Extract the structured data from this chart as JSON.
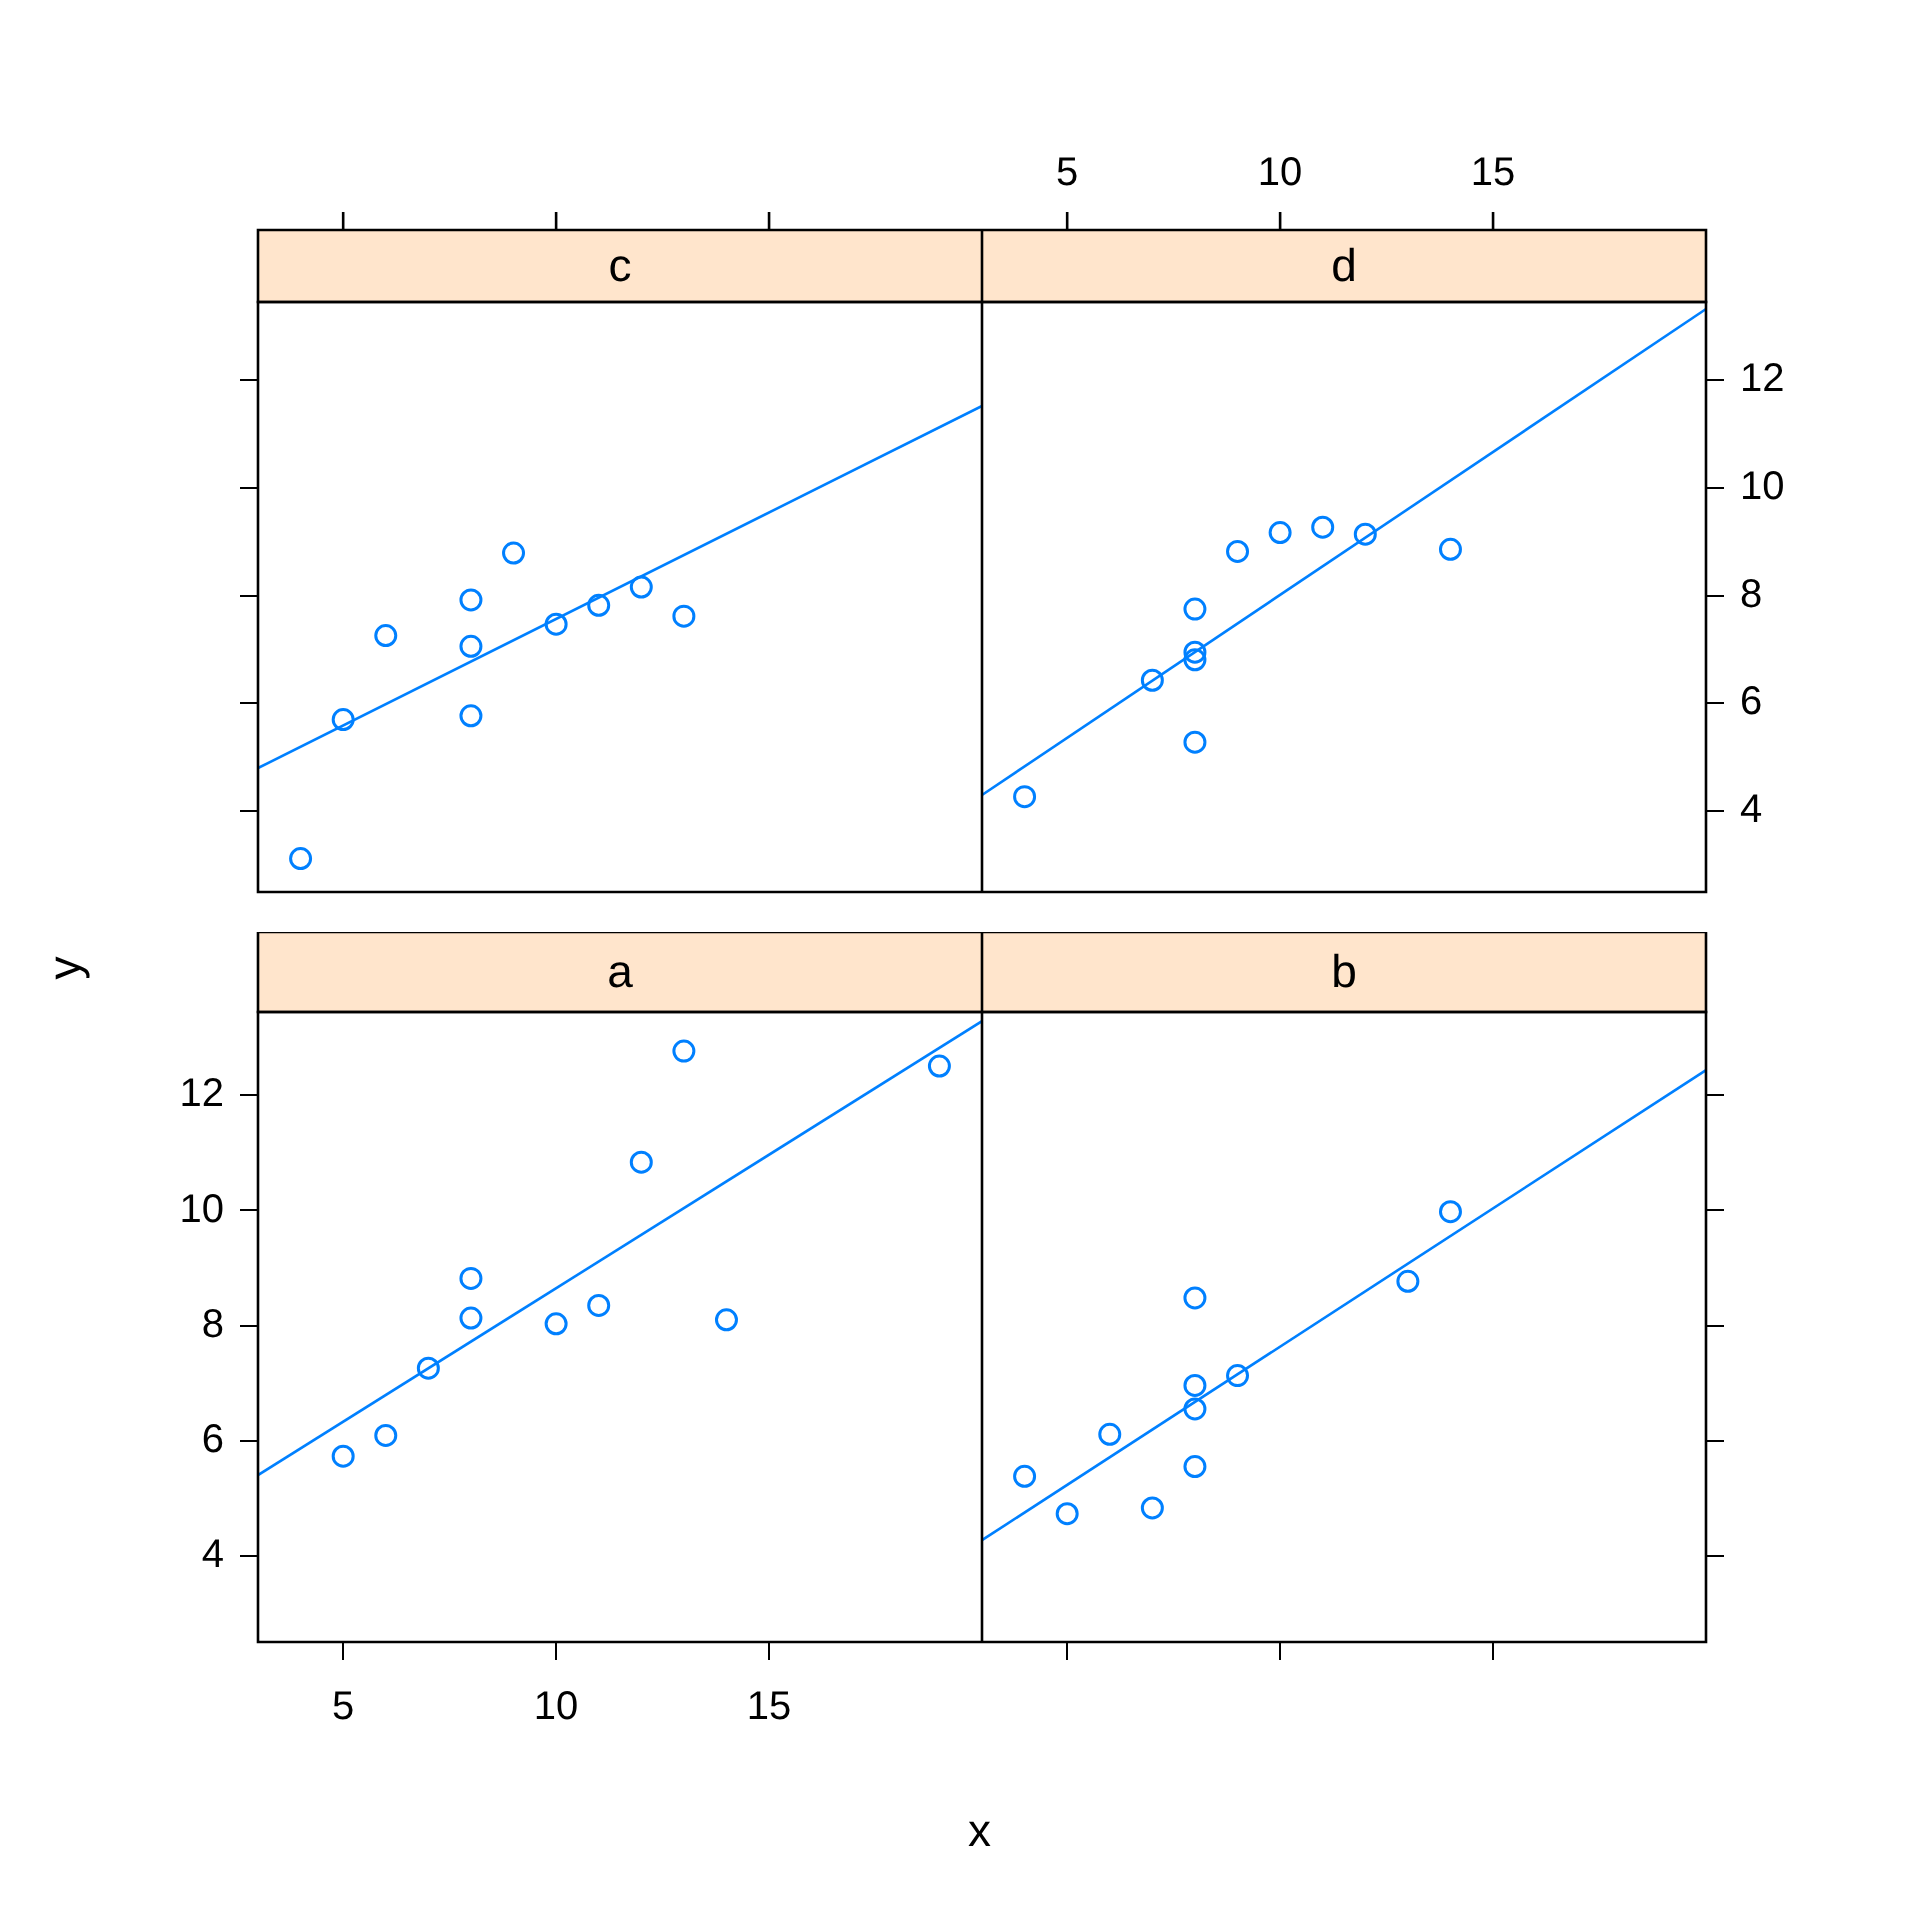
{
  "chart_data": [
    {
      "type": "scatter",
      "title": "c",
      "xlim": [
        3,
        20
      ],
      "ylim": [
        2.5,
        13.45
      ],
      "xticks": [
        5,
        10,
        15
      ],
      "yticks": [
        4,
        6,
        8,
        10,
        12
      ],
      "tick_labels": false,
      "series": [
        {
          "type": "scatter",
          "marker": "circle",
          "color": "#0080ff",
          "x": [
            4,
            5,
            6,
            8,
            8,
            8,
            9,
            10,
            11,
            12,
            13
          ],
          "values": [
            3.12,
            5.7,
            7.26,
            7.92,
            7.06,
            5.77,
            8.79,
            7.47,
            7.82,
            8.16,
            7.62
          ]
        },
        {
          "type": "line",
          "marker": "none",
          "color": "#0080ff",
          "x": [
            3,
            20
          ],
          "values": [
            4.8,
            11.52
          ]
        }
      ]
    },
    {
      "type": "scatter",
      "title": "d",
      "xlim": [
        3,
        20
      ],
      "ylim": [
        2.5,
        13.45
      ],
      "xticks": [
        5,
        10,
        15
      ],
      "yticks": [
        4,
        6,
        8,
        10,
        12
      ],
      "series": [
        {
          "type": "scatter",
          "marker": "circle",
          "color": "#0080ff",
          "x": [
            4,
            7,
            8,
            8,
            8,
            8,
            9,
            10,
            11,
            12,
            14
          ],
          "values": [
            4.27,
            6.43,
            7.75,
            6.95,
            6.81,
            5.28,
            8.82,
            9.17,
            9.27,
            9.14,
            8.86
          ]
        },
        {
          "type": "line",
          "marker": "none",
          "color": "#0080ff",
          "x": [
            3,
            20
          ],
          "values": [
            4.3,
            13.32
          ]
        }
      ]
    },
    {
      "type": "scatter",
      "title": "a",
      "xlabel": "x",
      "ylabel": "y",
      "xlim": [
        3,
        20
      ],
      "ylim": [
        2.5,
        13.45
      ],
      "xticks": [
        5,
        10,
        15
      ],
      "yticks": [
        4,
        6,
        8,
        10,
        12
      ],
      "series": [
        {
          "type": "scatter",
          "marker": "circle",
          "color": "#0080ff",
          "x": [
            5,
            6,
            7,
            8,
            8,
            10,
            11,
            12,
            13,
            14,
            19
          ],
          "values": [
            5.73,
            6.09,
            7.26,
            8.82,
            8.13,
            8.03,
            8.35,
            10.84,
            12.77,
            8.1,
            12.51
          ]
        },
        {
          "type": "line",
          "marker": "none",
          "color": "#0080ff",
          "x": [
            3,
            20
          ],
          "values": [
            5.4,
            13.29
          ]
        }
      ]
    },
    {
      "type": "scatter",
      "title": "b",
      "xlim": [
        3,
        20
      ],
      "ylim": [
        2.5,
        13.45
      ],
      "xticks": [
        5,
        10,
        15
      ],
      "yticks": [
        4,
        6,
        8,
        10,
        12
      ],
      "tick_labels": false,
      "series": [
        {
          "type": "scatter",
          "marker": "circle",
          "color": "#0080ff",
          "x": [
            4,
            5,
            6,
            7,
            8,
            8,
            8,
            8,
            9,
            13,
            14
          ],
          "values": [
            5.38,
            4.73,
            6.11,
            4.83,
            8.48,
            6.96,
            6.55,
            5.55,
            7.13,
            8.77,
            9.98
          ]
        },
        {
          "type": "line",
          "marker": "none",
          "color": "#0080ff",
          "x": [
            3,
            20
          ],
          "values": [
            4.27,
            12.44
          ]
        }
      ]
    }
  ]
}
